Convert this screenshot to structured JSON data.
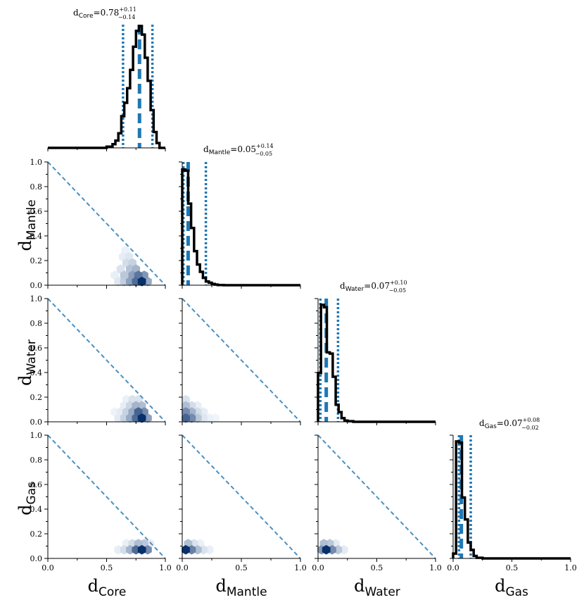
{
  "chart_data": {
    "type": "corner",
    "parameters": [
      {
        "key": "Core",
        "name": "d",
        "sub": "Core",
        "median": 0.78,
        "plus": "+0.11",
        "minus": "−0.14",
        "median_text": "0.78",
        "lo": 0.64,
        "hi": 0.89,
        "hist_x": [
          0.0,
          0.45,
          0.5,
          0.55,
          0.575,
          0.6,
          0.625,
          0.65,
          0.675,
          0.7,
          0.725,
          0.75,
          0.775,
          0.8,
          0.825,
          0.85,
          0.875,
          0.9,
          0.925,
          0.95,
          1.0
        ],
        "hist_y": [
          0.0,
          0.0,
          0.01,
          0.03,
          0.06,
          0.12,
          0.26,
          0.37,
          0.49,
          0.64,
          0.83,
          0.96,
          1.0,
          0.93,
          0.74,
          0.55,
          0.31,
          0.13,
          0.04,
          0.0
        ]
      },
      {
        "key": "Mantle",
        "name": "d",
        "sub": "Mantle",
        "median": 0.05,
        "plus": "+0.14",
        "minus": "−0.05",
        "median_text": "0.05",
        "lo": 0.01,
        "hi": 0.2,
        "hist_x": [
          0.0,
          0.025,
          0.05,
          0.075,
          0.1,
          0.125,
          0.15,
          0.175,
          0.2,
          0.225,
          0.25,
          0.275,
          0.3,
          0.35,
          1.0
        ],
        "hist_y": [
          0.95,
          0.94,
          0.67,
          0.47,
          0.28,
          0.17,
          0.11,
          0.06,
          0.03,
          0.02,
          0.01,
          0.005,
          0.002,
          0.0
        ]
      },
      {
        "key": "Water",
        "name": "d",
        "sub": "Water",
        "median": 0.07,
        "plus": "+0.10",
        "minus": "−0.05",
        "median_text": "0.07",
        "lo": 0.02,
        "hi": 0.17,
        "hist_x": [
          0.0,
          0.025,
          0.05,
          0.075,
          0.1,
          0.125,
          0.15,
          0.175,
          0.2,
          0.225,
          0.25,
          0.3,
          1.0
        ],
        "hist_y": [
          0.4,
          0.96,
          0.94,
          0.57,
          0.56,
          0.37,
          0.14,
          0.08,
          0.03,
          0.01,
          0.005,
          0.0
        ]
      },
      {
        "key": "Gas",
        "name": "d",
        "sub": "Gas",
        "median": 0.07,
        "plus": "+0.08",
        "minus": "−0.02",
        "median_text": "0.07",
        "lo": 0.05,
        "hi": 0.15,
        "hist_x": [
          0.0,
          0.025,
          0.05,
          0.075,
          0.1,
          0.125,
          0.15,
          0.175,
          0.2,
          0.25,
          1.0
        ],
        "hist_y": [
          0.04,
          0.96,
          0.95,
          0.5,
          0.32,
          0.13,
          0.07,
          0.02,
          0.005,
          0.0
        ]
      }
    ],
    "axis_range": [
      0.0,
      1.0
    ],
    "x_ticks": [
      "0.0",
      "0.5",
      "1.0"
    ],
    "y_ticks": [
      "0.0",
      "0.2",
      "0.4",
      "0.6",
      "0.8",
      "1.0"
    ],
    "title_eq": "=",
    "density_cells": {
      "1_0": [
        {
          "x": 0.8,
          "y": 0.03,
          "w": 1.0
        },
        {
          "x": 0.75,
          "y": 0.03,
          "w": 0.7
        },
        {
          "x": 0.77,
          "y": 0.08,
          "w": 0.65
        },
        {
          "x": 0.72,
          "y": 0.08,
          "w": 0.45
        },
        {
          "x": 0.7,
          "y": 0.03,
          "w": 0.45
        },
        {
          "x": 0.82,
          "y": 0.08,
          "w": 0.5
        },
        {
          "x": 0.75,
          "y": 0.13,
          "w": 0.35
        },
        {
          "x": 0.7,
          "y": 0.13,
          "w": 0.28
        },
        {
          "x": 0.65,
          "y": 0.08,
          "w": 0.25
        },
        {
          "x": 0.65,
          "y": 0.03,
          "w": 0.22
        },
        {
          "x": 0.72,
          "y": 0.18,
          "w": 0.2
        },
        {
          "x": 0.67,
          "y": 0.18,
          "w": 0.15
        },
        {
          "x": 0.62,
          "y": 0.13,
          "w": 0.12
        },
        {
          "x": 0.6,
          "y": 0.03,
          "w": 0.1
        },
        {
          "x": 0.69,
          "y": 0.23,
          "w": 0.1
        },
        {
          "x": 0.85,
          "y": 0.03,
          "w": 0.4
        },
        {
          "x": 0.64,
          "y": 0.23,
          "w": 0.07
        },
        {
          "x": 0.66,
          "y": 0.28,
          "w": 0.05
        },
        {
          "x": 0.57,
          "y": 0.08,
          "w": 0.06
        }
      ],
      "2_0": [
        {
          "x": 0.8,
          "y": 0.03,
          "w": 1.0
        },
        {
          "x": 0.75,
          "y": 0.03,
          "w": 0.7
        },
        {
          "x": 0.77,
          "y": 0.08,
          "w": 0.75
        },
        {
          "x": 0.82,
          "y": 0.08,
          "w": 0.55
        },
        {
          "x": 0.72,
          "y": 0.08,
          "w": 0.4
        },
        {
          "x": 0.7,
          "y": 0.03,
          "w": 0.4
        },
        {
          "x": 0.85,
          "y": 0.03,
          "w": 0.45
        },
        {
          "x": 0.75,
          "y": 0.13,
          "w": 0.35
        },
        {
          "x": 0.8,
          "y": 0.13,
          "w": 0.3
        },
        {
          "x": 0.65,
          "y": 0.03,
          "w": 0.2
        },
        {
          "x": 0.67,
          "y": 0.08,
          "w": 0.2
        },
        {
          "x": 0.7,
          "y": 0.13,
          "w": 0.18
        },
        {
          "x": 0.72,
          "y": 0.18,
          "w": 0.12
        },
        {
          "x": 0.77,
          "y": 0.18,
          "w": 0.12
        },
        {
          "x": 0.62,
          "y": 0.08,
          "w": 0.08
        },
        {
          "x": 0.6,
          "y": 0.03,
          "w": 0.08
        },
        {
          "x": 0.65,
          "y": 0.13,
          "w": 0.07
        },
        {
          "x": 0.67,
          "y": 0.18,
          "w": 0.05
        },
        {
          "x": 0.57,
          "y": 0.08,
          "w": 0.04
        }
      ],
      "2_1": [
        {
          "x": 0.03,
          "y": 0.03,
          "w": 0.75
        },
        {
          "x": 0.03,
          "y": 0.08,
          "w": 0.55
        },
        {
          "x": 0.08,
          "y": 0.03,
          "w": 0.55
        },
        {
          "x": 0.08,
          "y": 0.08,
          "w": 0.35
        },
        {
          "x": 0.03,
          "y": 0.13,
          "w": 0.3
        },
        {
          "x": 0.13,
          "y": 0.03,
          "w": 0.25
        },
        {
          "x": 0.13,
          "y": 0.08,
          "w": 0.15
        },
        {
          "x": 0.08,
          "y": 0.13,
          "w": 0.15
        },
        {
          "x": 0.03,
          "y": 0.18,
          "w": 0.12
        },
        {
          "x": 0.18,
          "y": 0.03,
          "w": 0.1
        },
        {
          "x": 0.18,
          "y": 0.08,
          "w": 0.07
        },
        {
          "x": 0.23,
          "y": 0.03,
          "w": 0.05
        },
        {
          "x": 0.13,
          "y": 0.13,
          "w": 0.06
        },
        {
          "x": 0.28,
          "y": 0.03,
          "w": 0.03
        }
      ],
      "3_0": [
        {
          "x": 0.8,
          "y": 0.07,
          "w": 1.0
        },
        {
          "x": 0.75,
          "y": 0.07,
          "w": 0.7
        },
        {
          "x": 0.85,
          "y": 0.07,
          "w": 0.55
        },
        {
          "x": 0.7,
          "y": 0.07,
          "w": 0.35
        },
        {
          "x": 0.77,
          "y": 0.12,
          "w": 0.3
        },
        {
          "x": 0.82,
          "y": 0.12,
          "w": 0.25
        },
        {
          "x": 0.72,
          "y": 0.12,
          "w": 0.15
        },
        {
          "x": 0.65,
          "y": 0.07,
          "w": 0.15
        },
        {
          "x": 0.6,
          "y": 0.07,
          "w": 0.07
        },
        {
          "x": 0.67,
          "y": 0.12,
          "w": 0.06
        },
        {
          "x": 0.87,
          "y": 0.12,
          "w": 0.08
        }
      ],
      "3_1": [
        {
          "x": 0.03,
          "y": 0.07,
          "w": 1.0
        },
        {
          "x": 0.08,
          "y": 0.07,
          "w": 0.6
        },
        {
          "x": 0.13,
          "y": 0.07,
          "w": 0.3
        },
        {
          "x": 0.05,
          "y": 0.12,
          "w": 0.3
        },
        {
          "x": 0.18,
          "y": 0.07,
          "w": 0.12
        },
        {
          "x": 0.1,
          "y": 0.12,
          "w": 0.12
        },
        {
          "x": 0.23,
          "y": 0.07,
          "w": 0.06
        },
        {
          "x": 0.15,
          "y": 0.12,
          "w": 0.05
        }
      ],
      "3_2": [
        {
          "x": 0.07,
          "y": 0.07,
          "w": 1.0
        },
        {
          "x": 0.03,
          "y": 0.07,
          "w": 0.5
        },
        {
          "x": 0.12,
          "y": 0.07,
          "w": 0.55
        },
        {
          "x": 0.17,
          "y": 0.07,
          "w": 0.25
        },
        {
          "x": 0.05,
          "y": 0.12,
          "w": 0.3
        },
        {
          "x": 0.1,
          "y": 0.12,
          "w": 0.25
        },
        {
          "x": 0.22,
          "y": 0.07,
          "w": 0.08
        },
        {
          "x": 0.15,
          "y": 0.12,
          "w": 0.08
        }
      ]
    }
  }
}
